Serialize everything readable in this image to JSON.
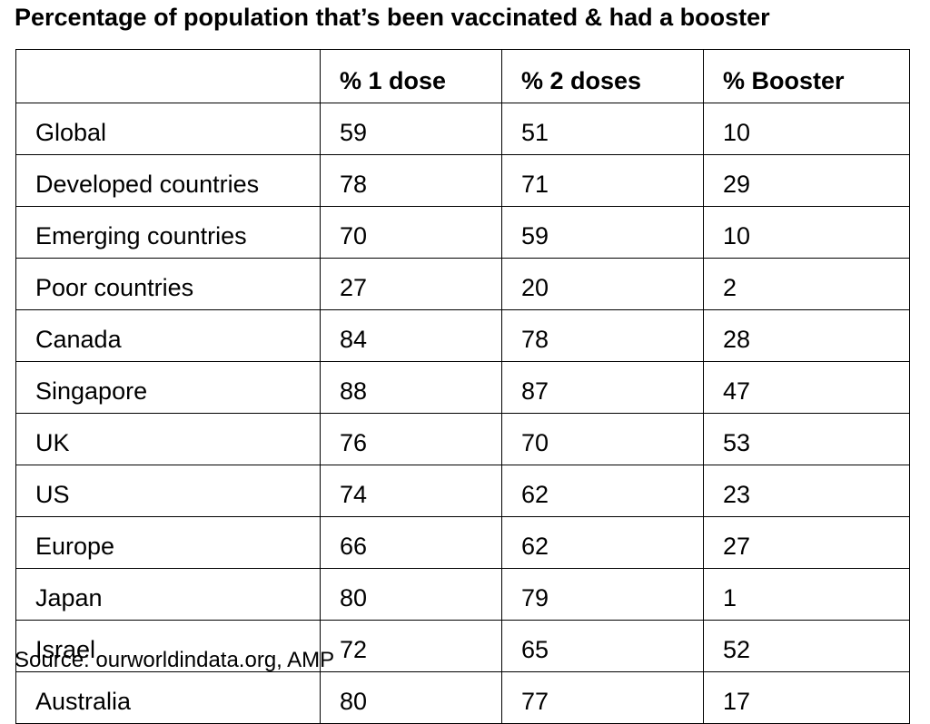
{
  "chart_data": {
    "type": "table",
    "title": "Percentage of population that’s been vaccinated & had a booster",
    "columns": [
      "",
      "% 1 dose",
      "% 2 doses",
      "% Booster"
    ],
    "rows": [
      {
        "label": "Global",
        "values": [
          59,
          51,
          10
        ]
      },
      {
        "label": "Developed countries",
        "values": [
          78,
          71,
          29
        ]
      },
      {
        "label": "Emerging countries",
        "values": [
          70,
          59,
          10
        ]
      },
      {
        "label": "Poor countries",
        "values": [
          27,
          20,
          2
        ]
      },
      {
        "label": "Canada",
        "values": [
          84,
          78,
          28
        ]
      },
      {
        "label": "Singapore",
        "values": [
          88,
          87,
          47
        ]
      },
      {
        "label": "UK",
        "values": [
          76,
          70,
          53
        ]
      },
      {
        "label": "US",
        "values": [
          74,
          62,
          23
        ]
      },
      {
        "label": "Europe",
        "values": [
          66,
          62,
          27
        ]
      },
      {
        "label": "Japan",
        "values": [
          80,
          79,
          1
        ]
      },
      {
        "label": "Israel",
        "values": [
          72,
          65,
          52
        ]
      },
      {
        "label": "Australia",
        "values": [
          80,
          77,
          17
        ]
      }
    ],
    "source": "Source: ourworldindata.org, AMP"
  }
}
